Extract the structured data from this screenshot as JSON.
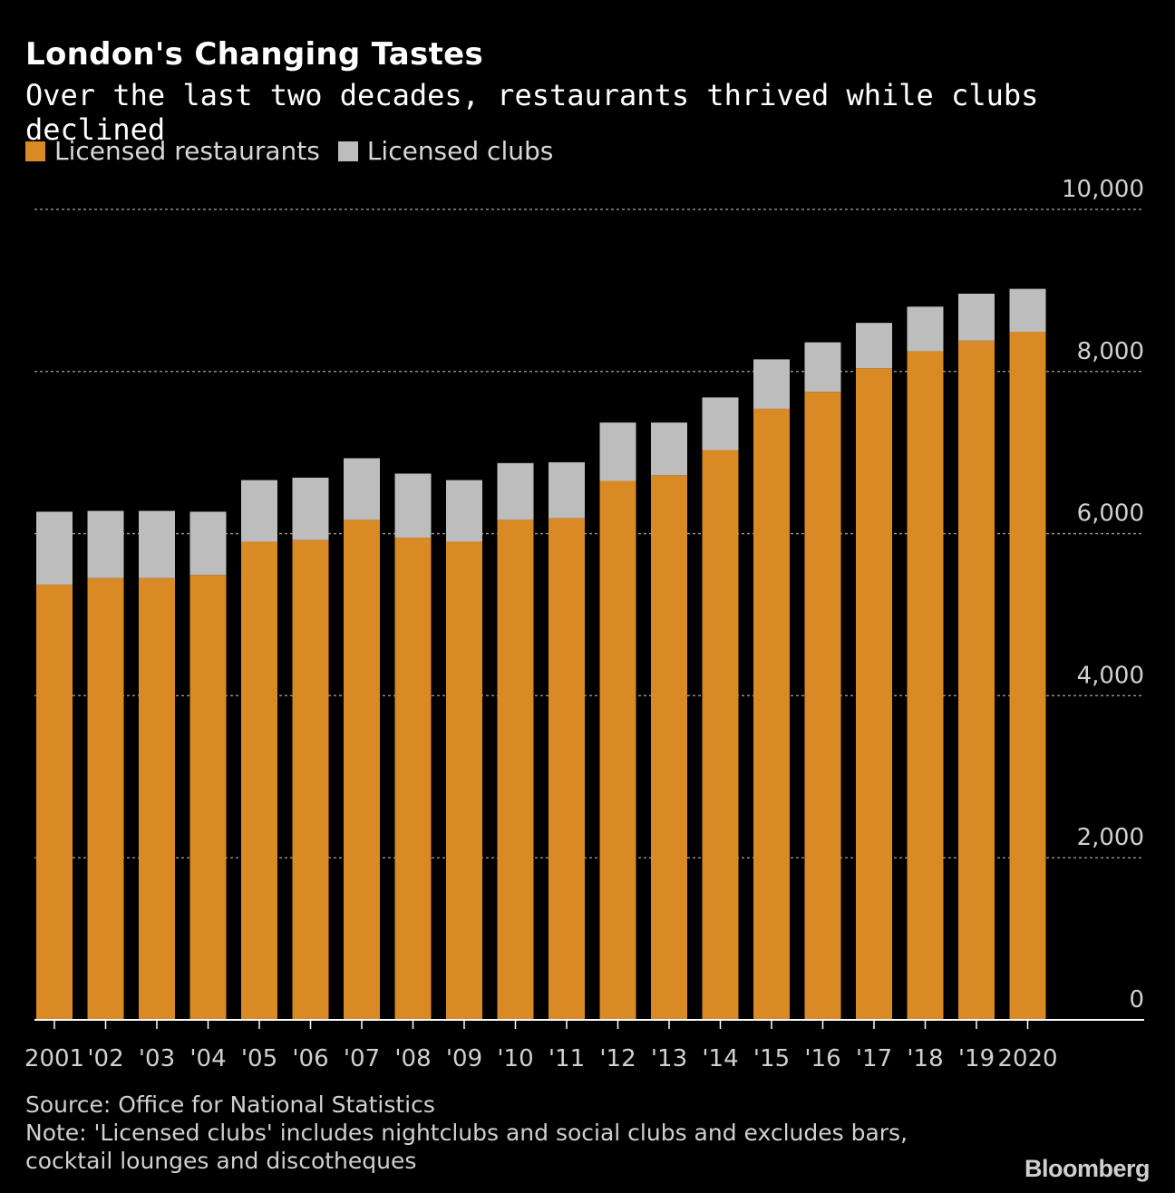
{
  "chart_data": {
    "type": "bar",
    "stacked": true,
    "title": "London's Changing Tastes",
    "subtitle": "Over the last two decades, restaurants thrived while clubs declined",
    "categories": [
      "2001",
      "'02",
      "'03",
      "'04",
      "'05",
      "'06",
      "'07",
      "'08",
      "'09",
      "'10",
      "'11",
      "'12",
      "'13",
      "'14",
      "'15",
      "'16",
      "'17",
      "'18",
      "'19",
      "2020"
    ],
    "series": [
      {
        "name": "Licensed restaurants",
        "color": "#d98a24",
        "values": [
          5370,
          5450,
          5450,
          5490,
          5900,
          5920,
          6170,
          5950,
          5900,
          6170,
          6190,
          6650,
          6720,
          7030,
          7540,
          7750,
          8040,
          8250,
          8380,
          8490
        ]
      },
      {
        "name": "Licensed clubs",
        "color": "#bdbdbd",
        "values": [
          900,
          830,
          830,
          780,
          760,
          770,
          760,
          790,
          760,
          700,
          690,
          720,
          650,
          650,
          610,
          610,
          560,
          550,
          580,
          530
        ]
      }
    ],
    "yticks": [
      "0",
      "2,000",
      "4,000",
      "6,000",
      "8,000",
      "10,000"
    ],
    "ylim": [
      0,
      10000
    ],
    "grid": true,
    "legend": "top-left",
    "axis_position": "right"
  },
  "footer": {
    "source": "Source: Office for National Statistics",
    "note_line1": "Note: 'Licensed clubs' includes nightclubs and social clubs and excludes bars,",
    "note_line2": "cocktail lounges and discotheques"
  },
  "logo": "Bloomberg",
  "colors": {
    "background": "#000000",
    "grid": "#8a8a8a",
    "tick_text": "#d0d0d0"
  }
}
